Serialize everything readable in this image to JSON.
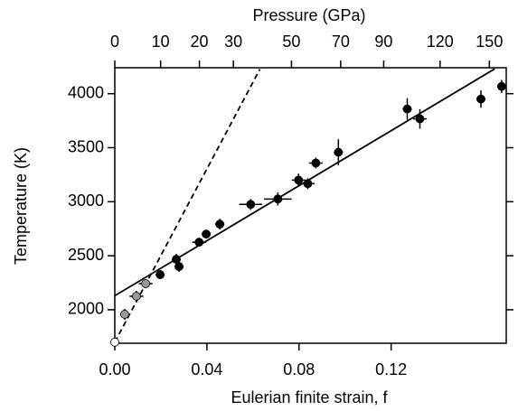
{
  "chart_data": {
    "type": "scatter",
    "x2label": "Pressure (GPa)",
    "ylabel": "Temperature (K)",
    "xlabel": "Eulerian finite strain, f",
    "xlim": [
      0,
      0.17
    ],
    "ylim": [
      1690,
      4240
    ],
    "xticks": [
      {
        "value": 0,
        "label": "0.00"
      },
      {
        "value": 0.04,
        "label": "0.04"
      },
      {
        "value": 0.08,
        "label": "0.08"
      },
      {
        "value": 0.12,
        "label": "0.12"
      }
    ],
    "yticks": [
      2000,
      2500,
      3000,
      3500,
      4000
    ],
    "x2ticks": [
      0,
      10,
      20,
      30,
      50,
      70,
      90,
      120,
      150
    ],
    "series": [
      {
        "kind": "points",
        "color": "#000000",
        "x": [
          0.0197,
          0.0267,
          0.0279,
          0.0366,
          0.0397,
          0.0456,
          0.059,
          0.0708,
          0.0798,
          0.0838,
          0.0873,
          0.0971,
          0.127,
          0.1325,
          0.159,
          0.168
        ],
        "values": [
          2325,
          2467,
          2400,
          2625,
          2700,
          2792,
          2975,
          3025,
          3200,
          3167,
          3358,
          3458,
          3858,
          3767,
          3950,
          4067
        ],
        "xerr": [
          0.002,
          0.002,
          0.002,
          0.003,
          0.002,
          0.002,
          0.005,
          0.006,
          0.003,
          0.003,
          0.003,
          0.002,
          0.002,
          0.003,
          0.002,
          0.002
        ],
        "yerr": [
          40,
          50,
          50,
          40,
          40,
          50,
          50,
          60,
          60,
          50,
          50,
          120,
          100,
          90,
          80,
          60
        ]
      },
      {
        "kind": "points",
        "color": "#999999",
        "x": [
          0.0043,
          0.0094,
          0.0134
        ],
        "values": [
          1958,
          2125,
          2242
        ],
        "xerr": [
          0.002,
          0.003,
          0.003
        ],
        "yerr": [
          50,
          50,
          40
        ]
      },
      {
        "kind": "points",
        "color": "#ffffff",
        "x": [
          0
        ],
        "values": [
          1700
        ]
      },
      {
        "kind": "line",
        "color": "#000000",
        "style": "solid",
        "x": [
          0,
          0.165
        ],
        "values": [
          2130,
          4230
        ]
      },
      {
        "kind": "line",
        "color": "#000000",
        "style": "dashed",
        "x": [
          0,
          0.063
        ],
        "values": [
          1700,
          4226
        ]
      }
    ]
  }
}
